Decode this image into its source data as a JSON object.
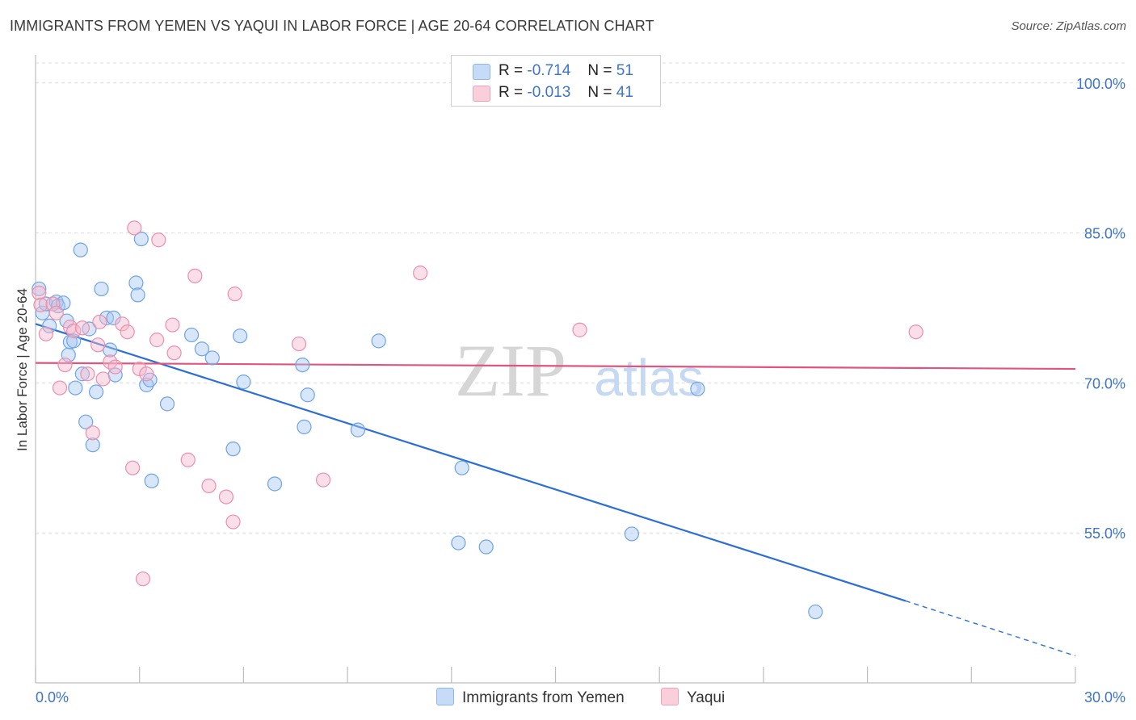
{
  "title": "IMMIGRANTS FROM YEMEN VS YAQUI IN LABOR FORCE | AGE 20-64 CORRELATION CHART",
  "source": "Source: ZipAtlas.com",
  "watermark": {
    "zip": "ZIP",
    "atlas": "atlas"
  },
  "legend_top": [
    {
      "r_label": "R =",
      "r_value": "-0.714",
      "n_label": "N =",
      "n_value": "51",
      "color": "#a9c8f2"
    },
    {
      "r_label": "R =",
      "r_value": "-0.013",
      "n_label": "N =",
      "n_value": "41",
      "color": "#f5b8cb"
    }
  ],
  "legend_bottom": [
    {
      "label": "Immigrants from Yemen",
      "color": "#a9c8f2"
    },
    {
      "label": "Yaqui",
      "color": "#f5b8cb"
    }
  ],
  "chart_data": {
    "type": "scatter",
    "title": "IMMIGRANTS FROM YEMEN VS YAQUI IN LABOR FORCE | AGE 20-64 CORRELATION CHART",
    "xlabel": "",
    "ylabel": "In Labor Force | Age 20-64",
    "xlim": [
      0.0,
      30.0
    ],
    "ylim": [
      40.0,
      102.0
    ],
    "x_tick_labels": [
      "0.0%",
      "30.0%"
    ],
    "y_ticks": [
      55.0,
      70.0,
      85.0,
      100.0
    ],
    "y_tick_labels": [
      "55.0%",
      "70.0%",
      "85.0%",
      "100.0%"
    ],
    "series": [
      {
        "name": "Immigrants from Yemen",
        "color": "#6fa3e6",
        "fill": "#a9c8f2",
        "trend_color": "#2b6fd6",
        "trend": {
          "x0": 0.0,
          "y0": 75.9,
          "x1": 25.1,
          "y1": 48.2,
          "dash_to_x": 30.0,
          "dash_to_y": 42.7
        },
        "points": [
          [
            0.1,
            79.4
          ],
          [
            0.2,
            77.0
          ],
          [
            0.3,
            77.9
          ],
          [
            0.4,
            75.7
          ],
          [
            0.6,
            78.1
          ],
          [
            0.65,
            77.7
          ],
          [
            0.8,
            78.0
          ],
          [
            0.9,
            76.2
          ],
          [
            0.95,
            72.8
          ],
          [
            1.0,
            74.1
          ],
          [
            1.1,
            74.2
          ],
          [
            1.15,
            69.5
          ],
          [
            1.3,
            83.3
          ],
          [
            1.35,
            70.9
          ],
          [
            1.45,
            66.1
          ],
          [
            1.55,
            75.4
          ],
          [
            1.65,
            63.8
          ],
          [
            1.75,
            69.1
          ],
          [
            1.9,
            79.4
          ],
          [
            2.05,
            76.5
          ],
          [
            2.15,
            73.3
          ],
          [
            2.25,
            76.5
          ],
          [
            2.3,
            70.8
          ],
          [
            2.9,
            80.0
          ],
          [
            2.95,
            78.8
          ],
          [
            3.05,
            84.4
          ],
          [
            3.2,
            69.8
          ],
          [
            3.3,
            70.3
          ],
          [
            3.35,
            60.2
          ],
          [
            3.8,
            67.9
          ],
          [
            4.5,
            74.8
          ],
          [
            4.8,
            73.4
          ],
          [
            5.1,
            72.5
          ],
          [
            5.7,
            63.4
          ],
          [
            5.9,
            74.7
          ],
          [
            6.0,
            70.1
          ],
          [
            6.9,
            59.9
          ],
          [
            7.7,
            71.8
          ],
          [
            7.75,
            65.6
          ],
          [
            7.85,
            68.8
          ],
          [
            9.3,
            65.3
          ],
          [
            9.9,
            74.2
          ],
          [
            12.2,
            54.0
          ],
          [
            12.3,
            61.5
          ],
          [
            13.0,
            53.6
          ],
          [
            17.2,
            54.9
          ],
          [
            19.1,
            69.4
          ],
          [
            22.5,
            47.1
          ]
        ]
      },
      {
        "name": "Yaqui",
        "color": "#ec8fac",
        "fill": "#f5b8cb",
        "trend_color": "#e0557f",
        "trend": {
          "x0": 0.0,
          "y0": 72.0,
          "x1": 30.0,
          "y1": 71.4
        },
        "points": [
          [
            0.1,
            79.0
          ],
          [
            0.15,
            77.8
          ],
          [
            0.3,
            74.9
          ],
          [
            0.5,
            77.9
          ],
          [
            0.6,
            77.0
          ],
          [
            0.7,
            69.5
          ],
          [
            0.85,
            71.8
          ],
          [
            1.0,
            75.6
          ],
          [
            1.1,
            75.2
          ],
          [
            1.35,
            75.5
          ],
          [
            1.5,
            70.9
          ],
          [
            1.65,
            65.0
          ],
          [
            1.8,
            73.8
          ],
          [
            1.85,
            76.1
          ],
          [
            1.95,
            70.4
          ],
          [
            2.15,
            72.1
          ],
          [
            2.3,
            71.6
          ],
          [
            2.5,
            75.9
          ],
          [
            2.65,
            75.1
          ],
          [
            2.8,
            61.5
          ],
          [
            2.85,
            85.5
          ],
          [
            3.0,
            71.4
          ],
          [
            3.1,
            50.4
          ],
          [
            3.2,
            70.9
          ],
          [
            3.5,
            74.3
          ],
          [
            3.55,
            84.3
          ],
          [
            3.95,
            75.8
          ],
          [
            4.0,
            73.0
          ],
          [
            4.4,
            62.3
          ],
          [
            4.6,
            80.7
          ],
          [
            5.0,
            59.7
          ],
          [
            5.5,
            58.6
          ],
          [
            5.7,
            56.1
          ],
          [
            5.75,
            78.9
          ],
          [
            7.6,
            73.9
          ],
          [
            8.3,
            60.3
          ],
          [
            11.1,
            81.0
          ],
          [
            15.7,
            75.3
          ],
          [
            25.4,
            75.1
          ]
        ]
      }
    ]
  }
}
